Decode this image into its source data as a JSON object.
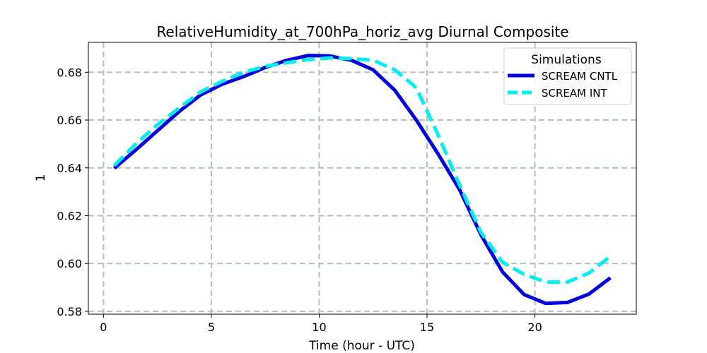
{
  "chart_data": {
    "type": "line",
    "title": "RelativeHumidity_at_700hPa_horiz_avg Diurnal Composite",
    "xlabel": "Time (hour - UTC)",
    "ylabel": "1",
    "xlim": [
      -0.7,
      24.7
    ],
    "ylim": [
      0.5788,
      0.6925
    ],
    "xticks": [
      0,
      5,
      10,
      15,
      20
    ],
    "yticks": [
      0.58,
      0.6,
      0.62,
      0.64,
      0.66,
      0.68
    ],
    "xtick_labels": [
      "0",
      "5",
      "10",
      "15",
      "20"
    ],
    "ytick_labels": [
      "0.58",
      "0.60",
      "0.62",
      "0.64",
      "0.66",
      "0.68"
    ],
    "grid": true,
    "legend": {
      "title": "Simulations",
      "position": "top-right"
    },
    "x": [
      0.5,
      1.5,
      2.5,
      3.5,
      4.5,
      5.5,
      6.5,
      7.5,
      8.5,
      9.5,
      10.5,
      11.5,
      12.5,
      13.5,
      14.5,
      15.5,
      16.5,
      17.5,
      18.5,
      19.5,
      20.5,
      21.5,
      22.5,
      23.5
    ],
    "series": [
      {
        "name": "SCREAM CNTL",
        "color": "#0000dd",
        "style": "solid",
        "values": [
          0.6398,
          0.6475,
          0.6555,
          0.6635,
          0.6705,
          0.675,
          0.6782,
          0.682,
          0.685,
          0.687,
          0.6868,
          0.685,
          0.681,
          0.6725,
          0.66,
          0.646,
          0.631,
          0.612,
          0.5965,
          0.587,
          0.5833,
          0.5837,
          0.5872,
          0.594
        ]
      },
      {
        "name": "SCREAM INT",
        "color": "#00eeee",
        "style": "dashed",
        "values": [
          0.641,
          0.65,
          0.658,
          0.665,
          0.6718,
          0.6762,
          0.68,
          0.6825,
          0.684,
          0.6853,
          0.686,
          0.6857,
          0.685,
          0.681,
          0.6735,
          0.654,
          0.633,
          0.613,
          0.6005,
          0.5955,
          0.5922,
          0.5922,
          0.596,
          0.603
        ]
      }
    ]
  }
}
